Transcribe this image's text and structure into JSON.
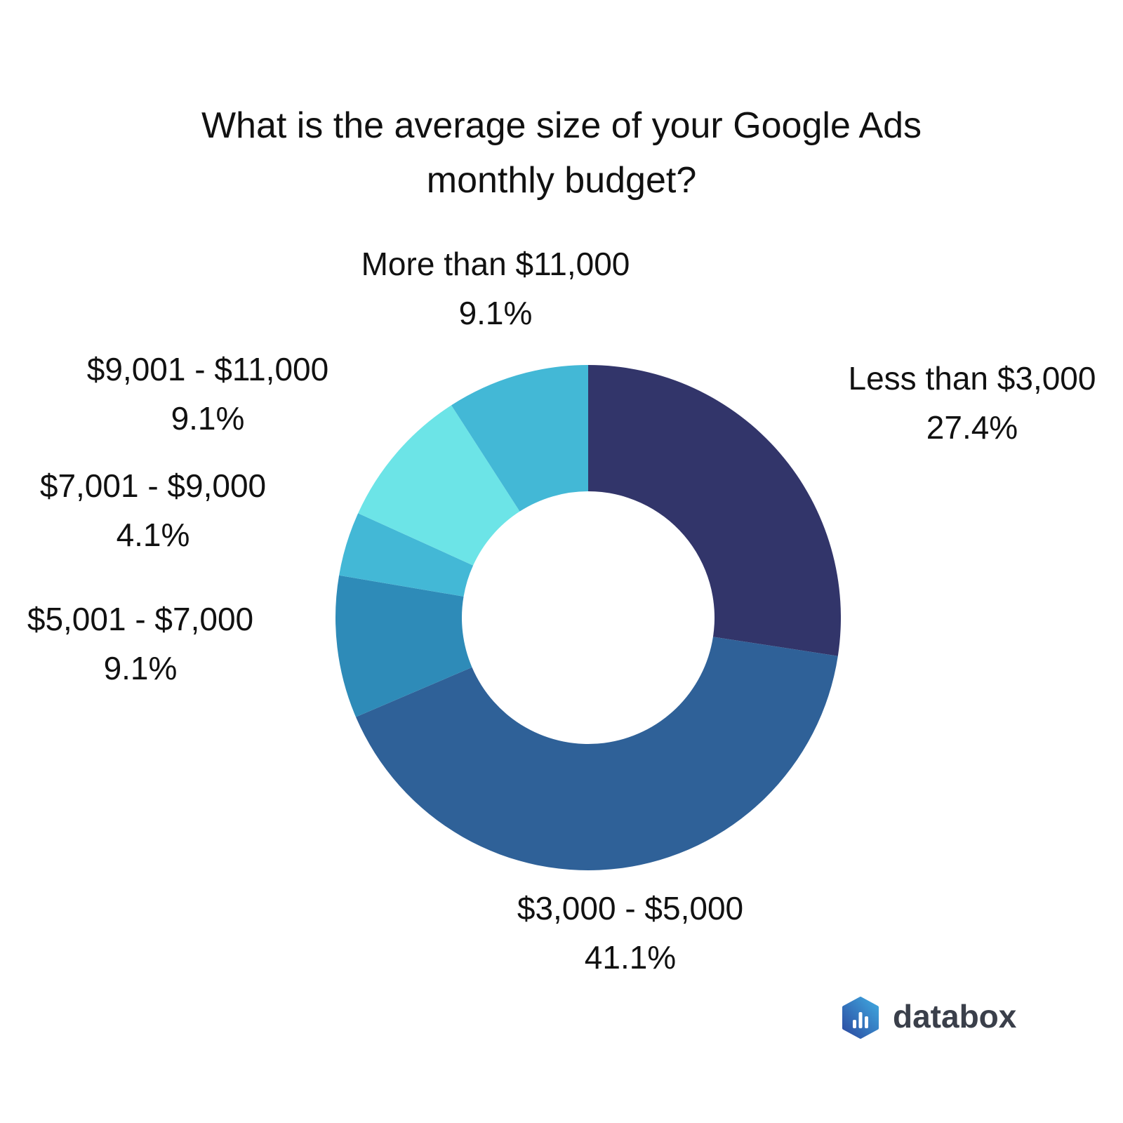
{
  "chart_data": {
    "type": "pie",
    "title_lines": [
      "What is the average size of your Google Ads",
      "monthly budget?"
    ],
    "donut": true,
    "slices": [
      {
        "label": "Less than $3,000",
        "value": 27.4,
        "value_label": "27.4%",
        "color": "#32356a"
      },
      {
        "label": "$3,000 - $5,000",
        "value": 41.1,
        "value_label": "41.1%",
        "color": "#2f6198"
      },
      {
        "label": "$5,001 - $7,000",
        "value": 9.1,
        "value_label": "9.1%",
        "color": "#2e8bb8"
      },
      {
        "label": "$7,001 - $9,000",
        "value": 4.1,
        "value_label": "4.1%",
        "color": "#43b8d6"
      },
      {
        "label": "$9,001 - $11,000",
        "value": 9.1,
        "value_label": "9.1%",
        "color": "#6ce4e7"
      },
      {
        "label": "More than $11,000",
        "value": 9.1,
        "value_label": "9.1%",
        "color": "#43b8d6"
      }
    ]
  },
  "brand": {
    "name": "databox",
    "logo_icon": "databox-logo-icon",
    "logo_colors": [
      "#2c4aa0",
      "#3fa9e0"
    ]
  }
}
